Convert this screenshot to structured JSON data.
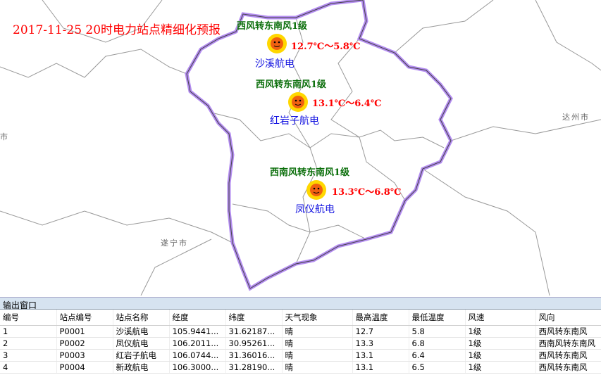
{
  "map": {
    "title": "2017-11-25 20时电力站点精细化预报",
    "cities": [
      "达州市",
      "遂宁市",
      "市"
    ],
    "colors": {
      "region_border": "#9b59e6",
      "county_lines": "#888888",
      "wind": "#0a6e0a",
      "temp": "#ff0000",
      "station": "#1010e0"
    },
    "stations": [
      {
        "name": "沙溪航电",
        "wind": "西风转东南风1级",
        "temp": "12.7℃～5.8℃",
        "icon": "sun-icon"
      },
      {
        "name": "红岩子航电",
        "wind": "西风转东南风1级",
        "temp": "13.1℃～6.4℃",
        "icon": "sun-icon"
      },
      {
        "name": "凤仪航电",
        "wind": "西南风转东南风1级",
        "temp": "13.3℃～6.8℃",
        "icon": "sun-icon"
      }
    ]
  },
  "output": {
    "title": "输出窗口",
    "columns": [
      "编号",
      "站点编号",
      "站点名称",
      "经度",
      "纬度",
      "天气现象",
      "最高温度",
      "最低温度",
      "风速",
      "风向"
    ],
    "rows": [
      [
        "1",
        "P0001",
        "沙溪航电",
        "105.9441...",
        "31.62187...",
        "晴",
        "12.7",
        "5.8",
        "1级",
        "西风转东南风"
      ],
      [
        "2",
        "P0002",
        "凤仪航电",
        "106.2011...",
        "30.95261...",
        "晴",
        "13.3",
        "6.8",
        "1级",
        "西南风转东南风"
      ],
      [
        "3",
        "P0003",
        "红岩子航电",
        "106.0744...",
        "31.36016...",
        "晴",
        "13.1",
        "6.4",
        "1级",
        "西风转东南风"
      ],
      [
        "4",
        "P0004",
        "新政航电",
        "106.3000...",
        "31.28190...",
        "晴",
        "13.1",
        "6.5",
        "1级",
        "西风转东南风"
      ]
    ]
  }
}
